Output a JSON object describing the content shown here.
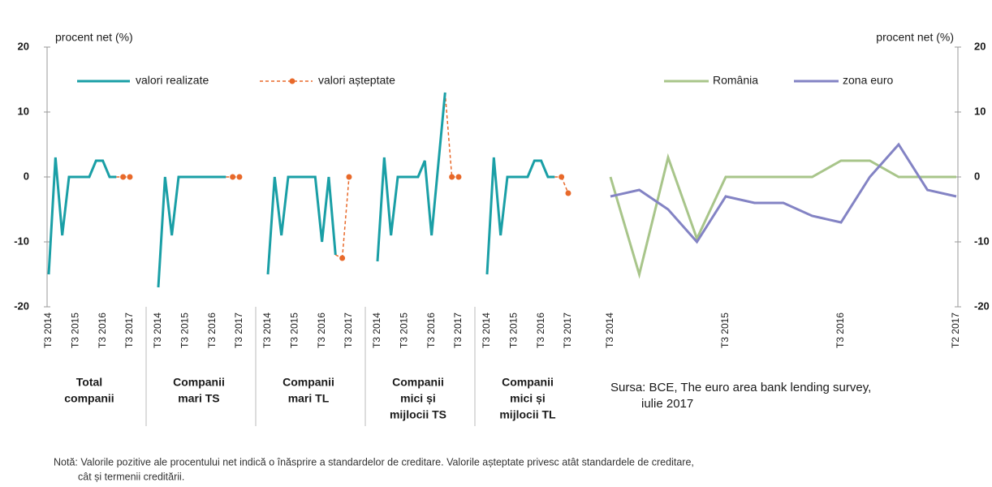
{
  "chart_data": [
    {
      "type": "line",
      "y_label": "procent net (%)",
      "ylim": [
        -20,
        20
      ],
      "yticks": [
        -20,
        -10,
        0,
        10,
        20
      ],
      "y_axis_side": "left",
      "categories": [
        "T3 2014",
        null,
        null,
        null,
        "T3 2015",
        null,
        null,
        null,
        "T3 2016",
        null,
        null,
        null,
        "T3 2017"
      ],
      "groups": [
        [
          "Total",
          "companii"
        ],
        [
          "Companii",
          "mari TS"
        ],
        [
          "Companii",
          "mari TL"
        ],
        [
          "Companii",
          "mici și",
          "mijlocii TS"
        ],
        [
          "Companii",
          "mici și",
          "mijlocii TL"
        ]
      ],
      "series": [
        {
          "name": "valori realizate",
          "color": "#1a9fa6",
          "style": "solid",
          "values": [
            [
              -15,
              3,
              -9,
              0,
              0,
              0,
              0,
              2.5,
              2.5,
              0,
              0,
              null,
              null
            ],
            [
              -17,
              0,
              -9,
              0,
              0,
              0,
              0,
              0,
              0,
              0,
              0,
              null,
              null
            ],
            [
              -15,
              0,
              -9,
              0,
              0,
              0,
              0,
              0,
              -10,
              0,
              -12,
              null,
              null
            ],
            [
              -13,
              3,
              -9,
              0,
              0,
              0,
              0,
              2.5,
              -9,
              2,
              13,
              null,
              null
            ],
            [
              -15,
              3,
              -9,
              0,
              0,
              0,
              0,
              2.5,
              2.5,
              0,
              0,
              null,
              null
            ]
          ]
        },
        {
          "name": "valori așteptate",
          "color": "#e8692a",
          "style": "dashed",
          "marker": true,
          "values": [
            [
              null,
              null,
              null,
              null,
              null,
              null,
              null,
              null,
              null,
              null,
              null,
              0,
              0
            ],
            [
              null,
              null,
              null,
              null,
              null,
              null,
              null,
              null,
              null,
              null,
              null,
              0,
              0
            ],
            [
              null,
              null,
              null,
              null,
              null,
              null,
              null,
              null,
              null,
              null,
              null,
              -12.5,
              0
            ],
            [
              null,
              null,
              null,
              null,
              null,
              null,
              null,
              null,
              null,
              null,
              null,
              0,
              0
            ],
            [
              null,
              null,
              null,
              null,
              null,
              null,
              null,
              null,
              null,
              null,
              null,
              0,
              -2.5
            ]
          ]
        }
      ],
      "note": [
        "Notă: Valorile pozitive ale procentului net indică o înăsprire a standardelor de creditare. Valorile așteptate privesc atât standardele de creditare,",
        "cât și termenii creditării."
      ]
    },
    {
      "type": "line",
      "y_label": "procent net (%)",
      "ylim": [
        -20,
        20
      ],
      "yticks": [
        -20,
        -10,
        0,
        10,
        20
      ],
      "y_axis_side": "right",
      "categories": [
        "T3 2014",
        null,
        null,
        null,
        "T3 2015",
        null,
        null,
        null,
        "T3 2016",
        null,
        null,
        null,
        "T2 2017"
      ],
      "series": [
        {
          "name": "România",
          "color": "#a8c58a",
          "values": [
            0,
            -15,
            3,
            -9.5,
            0,
            0,
            0,
            0,
            2.5,
            2.5,
            0,
            0,
            0
          ]
        },
        {
          "name": "zona euro",
          "color": "#8383c4",
          "values": [
            -3,
            -2,
            -5,
            -10,
            -3,
            -4,
            -4,
            -6,
            -7,
            0,
            5,
            -2,
            -3
          ]
        }
      ],
      "source": [
        "Sursa: BCE, The euro area bank lending survey,",
        "iulie 2017"
      ]
    }
  ]
}
